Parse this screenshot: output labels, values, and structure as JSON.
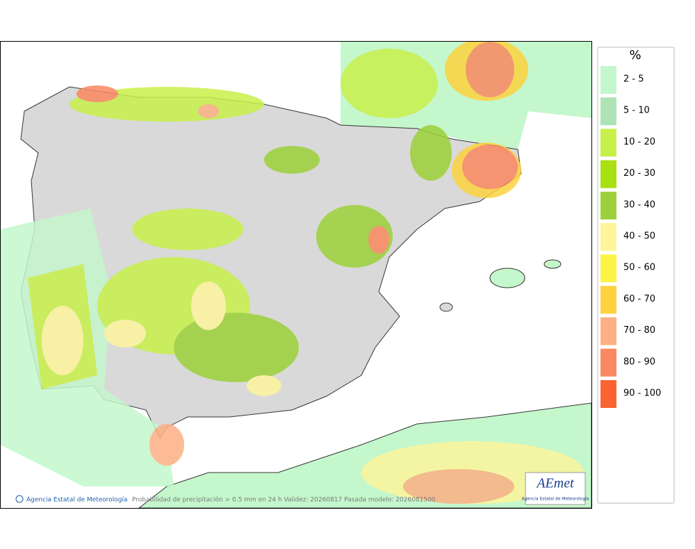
{
  "legend": {
    "title": "%",
    "items": [
      {
        "label": "2 - 5",
        "color": "#c4f7cc"
      },
      {
        "label": "5 - 10",
        "color": "#aee3b5"
      },
      {
        "label": "10 - 20",
        "color": "#c8f04a"
      },
      {
        "label": "20 - 30",
        "color": "#a8e010"
      },
      {
        "label": "30 - 40",
        "color": "#9cd03a"
      },
      {
        "label": "40 - 50",
        "color": "#fdf59c"
      },
      {
        "label": "50 - 60",
        "color": "#fcf444"
      },
      {
        "label": "60 - 70",
        "color": "#fdd23e"
      },
      {
        "label": "70 - 80",
        "color": "#fcb084"
      },
      {
        "label": "80 - 90",
        "color": "#fa8860"
      },
      {
        "label": "90 - 100",
        "color": "#fb6432"
      }
    ]
  },
  "footer": {
    "credit": "Agencia Estatal de Meteorología",
    "caption": "Probabilidad de precipitación > 0.5 mm en 24 h Validez: 20260817 Pasada modelo: 2026081500"
  },
  "logo": {
    "name": "AEmet",
    "subtitle": "Agencia Estatal de Meteorología"
  }
}
